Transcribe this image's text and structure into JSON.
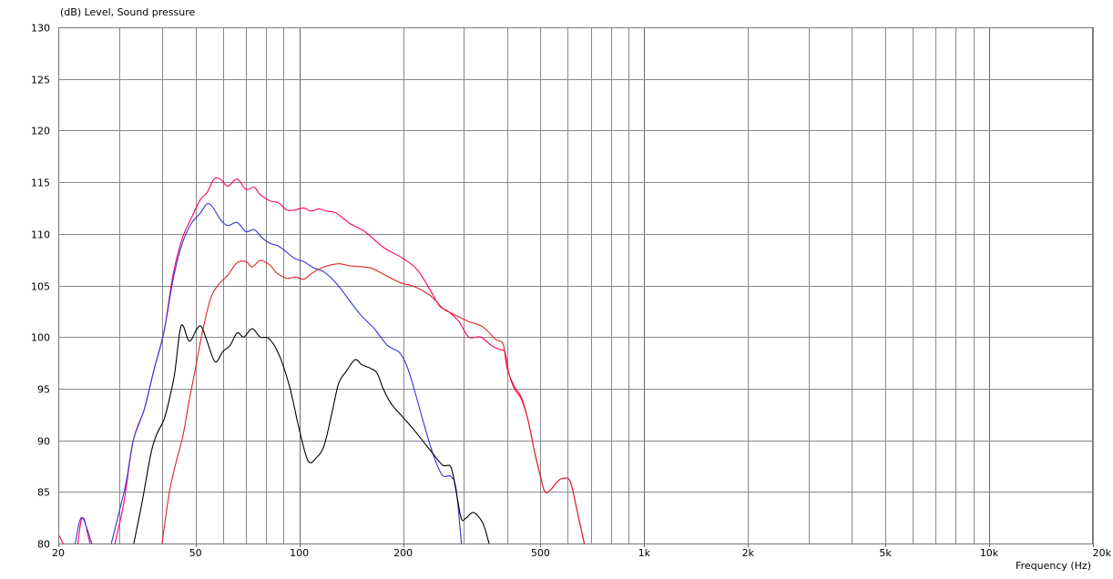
{
  "chart_data": {
    "type": "line",
    "title": "(dB)  Level, Sound pressure",
    "xlabel": "Frequency  (Hz)",
    "ylabel": "(dB)",
    "x_scale": "log",
    "xlim": [
      20,
      20000
    ],
    "ylim": [
      80,
      130
    ],
    "grid": true,
    "y_ticks": [
      130,
      125,
      120,
      115,
      110,
      105,
      100,
      95,
      90,
      85,
      80
    ],
    "x_ticks": [
      {
        "value": 20,
        "label": "20"
      },
      {
        "value": 50,
        "label": "50"
      },
      {
        "value": 100,
        "label": "100"
      },
      {
        "value": 200,
        "label": "200"
      },
      {
        "value": 500,
        "label": "500"
      },
      {
        "value": 1000,
        "label": "1k"
      },
      {
        "value": 2000,
        "label": "2k"
      },
      {
        "value": 5000,
        "label": "5k"
      },
      {
        "value": 10000,
        "label": "10k"
      },
      {
        "value": 20000,
        "label": "20k"
      }
    ],
    "series": [
      {
        "color": "#ff0066",
        "segments": [
          [
            [
              20,
              80.9
            ],
            [
              21,
              79.5
            ]
          ],
          [
            [
              22.8,
              80
            ],
            [
              23.3,
              82.2
            ],
            [
              23.8,
              82.3
            ],
            [
              24.5,
              80.5
            ],
            [
              25,
              79.5
            ]
          ],
          [
            [
              29.2,
              80
            ],
            [
              31,
              84
            ],
            [
              33,
              90
            ],
            [
              35.5,
              93
            ],
            [
              38,
              97
            ],
            [
              40.5,
              100.5
            ],
            [
              43,
              106
            ],
            [
              45.7,
              109.5
            ],
            [
              48.6,
              111.5
            ],
            [
              51.6,
              113.3
            ],
            [
              54,
              114
            ],
            [
              56.6,
              115.3
            ],
            [
              59,
              115.3
            ],
            [
              62,
              114.6
            ],
            [
              66,
              115.3
            ],
            [
              70,
              114.3
            ],
            [
              74,
              114.5
            ],
            [
              77,
              113.8
            ],
            [
              82,
              113.2
            ],
            [
              87,
              113
            ],
            [
              92,
              112.3
            ],
            [
              97,
              112.3
            ],
            [
              103,
              112.5
            ],
            [
              108,
              112.2
            ],
            [
              114,
              112.4
            ],
            [
              120,
              112.2
            ],
            [
              128,
              112
            ],
            [
              140,
              111
            ],
            [
              155,
              110.2
            ],
            [
              175,
              108.7
            ],
            [
              200,
              107.6
            ],
            [
              220,
              106.5
            ],
            [
              240,
              104.5
            ],
            [
              255,
              103
            ],
            [
              270,
              102.5
            ],
            [
              290,
              101.5
            ],
            [
              310,
              100
            ],
            [
              335,
              100
            ],
            [
              360,
              99.2
            ],
            [
              380,
              98.8
            ],
            [
              395,
              98.5
            ],
            [
              405,
              96.5
            ],
            [
              420,
              95
            ],
            [
              440,
              94
            ],
            [
              460,
              92
            ],
            [
              480,
              89
            ],
            [
              500,
              86.5
            ],
            [
              515,
              85
            ],
            [
              535,
              85.2
            ],
            [
              560,
              86
            ],
            [
              580,
              86.3
            ],
            [
              610,
              86
            ],
            [
              640,
              83
            ],
            [
              670,
              80
            ]
          ]
        ]
      },
      {
        "color": "#3333dd",
        "segments": [
          [
            [
              22.4,
              80
            ],
            [
              23,
              82
            ],
            [
              23.5,
              82.5
            ],
            [
              24.2,
              81.5
            ],
            [
              25,
              80
            ]
          ],
          [
            [
              28.5,
              80
            ],
            [
              30,
              83
            ],
            [
              31.5,
              86
            ],
            [
              33,
              90
            ],
            [
              35.5,
              93
            ],
            [
              38,
              97
            ],
            [
              40.5,
              100.5
            ],
            [
              43,
              105.5
            ],
            [
              45.7,
              109
            ],
            [
              48.6,
              111
            ],
            [
              51.6,
              112
            ],
            [
              54,
              112.9
            ],
            [
              56,
              112.6
            ],
            [
              59,
              111.4
            ],
            [
              62,
              110.8
            ],
            [
              66,
              111.1
            ],
            [
              70,
              110.2
            ],
            [
              74,
              110.4
            ],
            [
              78,
              109.6
            ],
            [
              82,
              109.1
            ],
            [
              87,
              108.8
            ],
            [
              92,
              108.2
            ],
            [
              97,
              107.6
            ],
            [
              103,
              107.3
            ],
            [
              110,
              106.7
            ],
            [
              118,
              106.3
            ],
            [
              128,
              105.2
            ],
            [
              140,
              103.5
            ],
            [
              150,
              102.2
            ],
            [
              165,
              100.8
            ],
            [
              180,
              99.2
            ],
            [
              195,
              98.5
            ],
            [
              205,
              97.2
            ],
            [
              215,
              95
            ],
            [
              230,
              91.5
            ],
            [
              245,
              88.5
            ],
            [
              260,
              86.6
            ],
            [
              275,
              86.5
            ],
            [
              285,
              85.2
            ],
            [
              295,
              80
            ]
          ]
        ]
      },
      {
        "color": "#dd2222",
        "segments": [
          [
            [
              40,
              80
            ],
            [
              42,
              85
            ],
            [
              44,
              88
            ],
            [
              46,
              90.5
            ],
            [
              48,
              94
            ],
            [
              50,
              97
            ],
            [
              52,
              100
            ],
            [
              55,
              103.5
            ],
            [
              58,
              105
            ],
            [
              62,
              106
            ],
            [
              66,
              107.2
            ],
            [
              70,
              107.3
            ],
            [
              73,
              106.8
            ],
            [
              77,
              107.4
            ],
            [
              82,
              107
            ],
            [
              86,
              106.2
            ],
            [
              92,
              105.7
            ],
            [
              98,
              105.8
            ],
            [
              103,
              105.6
            ],
            [
              110,
              106.3
            ],
            [
              118,
              106.8
            ],
            [
              130,
              107.1
            ],
            [
              140,
              106.9
            ],
            [
              160,
              106.7
            ],
            [
              175,
              106.1
            ],
            [
              195,
              105.3
            ],
            [
              215,
              104.9
            ],
            [
              240,
              104
            ],
            [
              260,
              102.8
            ],
            [
              280,
              102.2
            ],
            [
              310,
              101.5
            ],
            [
              340,
              101
            ],
            [
              370,
              99.8
            ],
            [
              390,
              99.3
            ],
            [
              400,
              97
            ],
            [
              420,
              95.2
            ],
            [
              440,
              94.2
            ],
            [
              460,
              92
            ],
            [
              480,
              89
            ],
            [
              500,
              86.5
            ],
            [
              515,
              85
            ],
            [
              535,
              85.2
            ],
            [
              560,
              86
            ],
            [
              580,
              86.3
            ],
            [
              610,
              86
            ],
            [
              640,
              83
            ],
            [
              670,
              80
            ]
          ]
        ]
      },
      {
        "color": "#000000",
        "segments": [
          [
            [
              33.1,
              80
            ],
            [
              35,
              84
            ],
            [
              37,
              88.5
            ],
            [
              38.5,
              90.5
            ],
            [
              40.5,
              92
            ],
            [
              42,
              94
            ],
            [
              43.5,
              96.5
            ],
            [
              45,
              100.5
            ],
            [
              46,
              101.1
            ],
            [
              48,
              99.6
            ],
            [
              50.5,
              100.8
            ],
            [
              52,
              101
            ],
            [
              54,
              99.6
            ],
            [
              57,
              97.6
            ],
            [
              60,
              98.6
            ],
            [
              63,
              99.2
            ],
            [
              66,
              100.4
            ],
            [
              69,
              100
            ],
            [
              73,
              100.8
            ],
            [
              77,
              100
            ],
            [
              82,
              99.8
            ],
            [
              88,
              98
            ],
            [
              94,
              95
            ],
            [
              100,
              91
            ],
            [
              106,
              88
            ],
            [
              112,
              88.3
            ],
            [
              118,
              89.5
            ],
            [
              124,
              92.5
            ],
            [
              130,
              95.5
            ],
            [
              137,
              96.7
            ],
            [
              145,
              97.8
            ],
            [
              152,
              97.3
            ],
            [
              160,
              97
            ],
            [
              168,
              96.5
            ],
            [
              175,
              95
            ],
            [
              185,
              93.5
            ],
            [
              200,
              92.2
            ],
            [
              215,
              91
            ],
            [
              240,
              89
            ],
            [
              260,
              87.6
            ],
            [
              275,
              87.4
            ],
            [
              285,
              85
            ],
            [
              295,
              82.4
            ],
            [
              305,
              82.5
            ],
            [
              320,
              83
            ],
            [
              340,
              82
            ],
            [
              355,
              80
            ]
          ]
        ]
      }
    ]
  }
}
